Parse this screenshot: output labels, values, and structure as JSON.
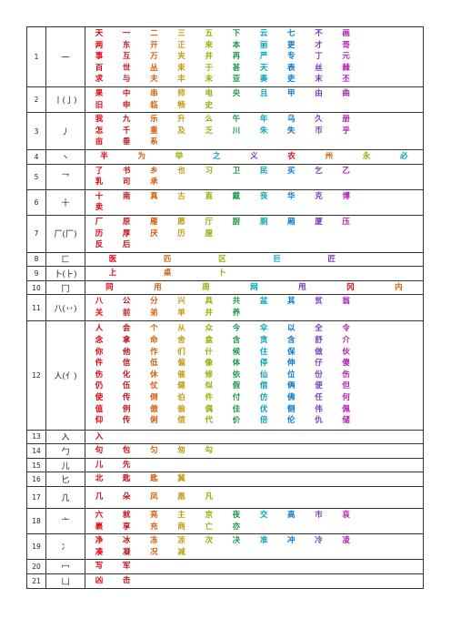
{
  "palette": [
    "#e8000b",
    "#c0161a",
    "#d45f0a",
    "#c29a12",
    "#8ab400",
    "#1a9a4c",
    "#00a5b8",
    "#0078d7",
    "#7a3dbd",
    "#b21ab2"
  ],
  "rows": [
    {
      "num": "1",
      "radical": "一",
      "h": 56,
      "lines": [
        {
          "gap": 0,
          "chars": [
            "天",
            "一",
            "二",
            "三",
            "五",
            "下",
            "云",
            "七",
            "不",
            "画"
          ]
        },
        {
          "gap": 0,
          "chars": [
            "两",
            "东",
            "开",
            "正",
            "来",
            "本",
            "丽",
            "更",
            "才",
            "哥"
          ]
        },
        {
          "gap": 0,
          "chars": [
            "事",
            "互",
            "万",
            "夹",
            "井",
            "再",
            "严",
            "专",
            "丁",
            "元"
          ]
        },
        {
          "gap": 0,
          "chars": [
            "百",
            "世",
            "丛",
            "束",
            "于",
            "甚",
            "天",
            "表",
            "丝",
            "棘"
          ]
        },
        {
          "gap": 0,
          "chars": [
            "求",
            "与",
            "夫",
            "丰",
            "未",
            "亚",
            "奏",
            "吏",
            "末",
            "丕"
          ]
        }
      ]
    },
    {
      "num": "2",
      "radical": "丨(亅)",
      "h": 24,
      "lines": [
        {
          "gap": 0,
          "chars": [
            "果",
            "中",
            "串",
            "师",
            "电",
            "央",
            "且",
            "甲",
            "由",
            "曲"
          ]
        },
        {
          "gap": 0,
          "chars": [
            "旧",
            "申",
            "临",
            "畅",
            "史"
          ]
        }
      ]
    },
    {
      "num": "3",
      "radical": "丿",
      "h": 37,
      "lines": [
        {
          "gap": 0,
          "chars": [
            "我",
            "九",
            "乐",
            "升",
            "么",
            "午",
            "年",
            "乌",
            "久",
            "册"
          ]
        },
        {
          "gap": 0,
          "chars": [
            "怎",
            "千",
            "重",
            "及",
            "乏",
            "川",
            "朱",
            "失",
            "币",
            "乎"
          ]
        },
        {
          "gap": 0,
          "chars": [
            "亩",
            "垂",
            "系"
          ]
        }
      ]
    },
    {
      "num": "4",
      "radical": "丶",
      "h": 12,
      "lines": [
        {
          "gap": 1,
          "chars": [
            "半",
            "为",
            "举",
            "之",
            "义",
            "农",
            "州",
            "永",
            "必"
          ]
        }
      ]
    },
    {
      "num": "5",
      "radical": "乛",
      "h": 23,
      "lines": [
        {
          "gap": 0,
          "chars": [
            "了",
            "书",
            "乡",
            "也",
            "习",
            "卫",
            "民",
            "买",
            "乞",
            "乙"
          ]
        },
        {
          "gap": 0,
          "chars": [
            "乳",
            "司",
            "承"
          ]
        }
      ]
    },
    {
      "num": "6",
      "radical": "十",
      "h": 23,
      "lines": [
        {
          "gap": 0,
          "chars": [
            "十",
            "南",
            "真",
            "古",
            "直",
            "戴",
            "丧",
            "华",
            "克",
            "博"
          ]
        },
        {
          "gap": 0,
          "chars": [
            "卖"
          ]
        }
      ]
    },
    {
      "num": "7",
      "radical": "厂(厂)",
      "h": 36,
      "lines": [
        {
          "gap": 0,
          "chars": [
            "厂",
            "原",
            "雁",
            "愿",
            "厅",
            "厨",
            "厕",
            "厢",
            "厦",
            "压"
          ]
        },
        {
          "gap": 0,
          "chars": [
            "历",
            "厚",
            "厌",
            "历",
            "厘"
          ]
        },
        {
          "gap": 0,
          "chars": [
            "反",
            "后"
          ]
        }
      ]
    },
    {
      "num": "8",
      "radical": "匚",
      "h": 11,
      "lines": [
        {
          "gap": 1,
          "chars": [
            "医",
            "匹",
            "区",
            "巨",
            "匠"
          ]
        }
      ]
    },
    {
      "num": "9",
      "radical": "卜(⺊)",
      "h": 11,
      "lines": [
        {
          "gap": 1,
          "chars": [
            "上",
            "桌",
            "卜"
          ]
        }
      ]
    },
    {
      "num": "10",
      "radical": "冂",
      "h": 11,
      "lines": [
        {
          "gap": 1,
          "chars": [
            "同",
            "用",
            "周",
            "网",
            "甩",
            "冈",
            "内"
          ]
        }
      ]
    },
    {
      "num": "11",
      "radical": "八(丷)",
      "h": 24,
      "lines": [
        {
          "gap": 0,
          "chars": [
            "八",
            "公",
            "分",
            "兴",
            "具",
            "共",
            "盆",
            "其",
            "贫",
            "翁"
          ]
        },
        {
          "gap": 0,
          "chars": [
            "关",
            "前",
            "弟",
            "单",
            "并",
            "养"
          ]
        }
      ]
    },
    {
      "num": "12",
      "radical": "人(亻)",
      "h": 120,
      "lines": [
        {
          "gap": 0,
          "chars": [
            "人",
            "会",
            "个",
            "从",
            "众",
            "今",
            "伞",
            "以",
            "全",
            "令"
          ]
        },
        {
          "gap": 0,
          "chars": [
            "念",
            "拿",
            "命",
            "舍",
            "盒",
            "含",
            "贪",
            "含",
            "舒",
            "介"
          ]
        },
        {
          "gap": 0,
          "chars": [
            "你",
            "他",
            "作",
            "们",
            "什",
            "候",
            "住",
            "保",
            "做",
            "伙"
          ]
        },
        {
          "gap": 0,
          "chars": [
            "件",
            "信",
            "低",
            "偏",
            "像",
            "体",
            "停",
            "伸",
            "仔",
            "傻"
          ]
        },
        {
          "gap": 0,
          "chars": [
            "伤",
            "化",
            "休",
            "催",
            "修",
            "依",
            "仙",
            "位",
            "份",
            "伤"
          ]
        },
        {
          "gap": 0,
          "chars": [
            "仍",
            "伍",
            "仗",
            "健",
            "似",
            "假",
            "借",
            "俩",
            "便",
            "但"
          ]
        },
        {
          "gap": 0,
          "chars": [
            "使",
            "传",
            "倒",
            "伯",
            "件",
            "付",
            "仿",
            "佛",
            "任",
            "何"
          ]
        },
        {
          "gap": 0,
          "chars": [
            "值",
            "例",
            "傲",
            "偷",
            "偶",
            "佳",
            "优",
            "侧",
            "伟",
            "佩"
          ]
        },
        {
          "gap": 0,
          "chars": [
            "仰",
            "传",
            "俐",
            "偿",
            "代",
            "价",
            "倍",
            "伦",
            "仇",
            "储"
          ]
        }
      ]
    },
    {
      "num": "13",
      "radical": "入",
      "h": 11,
      "lines": [
        {
          "gap": 0,
          "chars": [
            "入"
          ]
        }
      ]
    },
    {
      "num": "14",
      "radical": "勹",
      "h": 11,
      "lines": [
        {
          "gap": 0,
          "chars": [
            "句",
            "包",
            "匀",
            "匆",
            "勾"
          ]
        }
      ]
    },
    {
      "num": "15",
      "radical": "儿",
      "h": 11,
      "lines": [
        {
          "gap": 0,
          "chars": [
            "儿",
            "先"
          ]
        }
      ]
    },
    {
      "num": "16",
      "radical": "匕",
      "h": 11,
      "lines": [
        {
          "gap": 0,
          "chars": [
            "北",
            "匙",
            "匙",
            "冀"
          ]
        }
      ]
    },
    {
      "num": "17",
      "radical": "几",
      "h": 24,
      "lines": [
        {
          "gap": 0,
          "chars": [
            "几",
            "朵",
            "凤",
            "凰",
            "凡"
          ]
        }
      ]
    },
    {
      "num": "18",
      "radical": "亠",
      "h": 24,
      "lines": [
        {
          "gap": 0,
          "chars": [
            "六",
            "就",
            "亮",
            "主",
            "京",
            "夜",
            "交",
            "高",
            "市",
            "哀"
          ]
        },
        {
          "gap": 0,
          "chars": [
            "裹",
            "享",
            "充",
            "商",
            "亡",
            "亦"
          ]
        }
      ]
    },
    {
      "num": "19",
      "radical": "冫",
      "h": 24,
      "lines": [
        {
          "gap": 0,
          "chars": [
            "净",
            "冰",
            "冻",
            "凉",
            "次",
            "决",
            "准",
            "冲",
            "冷",
            "凌"
          ]
        },
        {
          "gap": 0,
          "chars": [
            "凑",
            "凝",
            "况",
            "减"
          ]
        }
      ]
    },
    {
      "num": "20",
      "radical": "冖",
      "h": 11,
      "lines": [
        {
          "gap": 0,
          "chars": [
            "写",
            "军"
          ]
        }
      ]
    },
    {
      "num": "21",
      "radical": "凵",
      "h": 11,
      "lines": [
        {
          "gap": 0,
          "chars": [
            "凶",
            "击"
          ]
        }
      ]
    }
  ]
}
